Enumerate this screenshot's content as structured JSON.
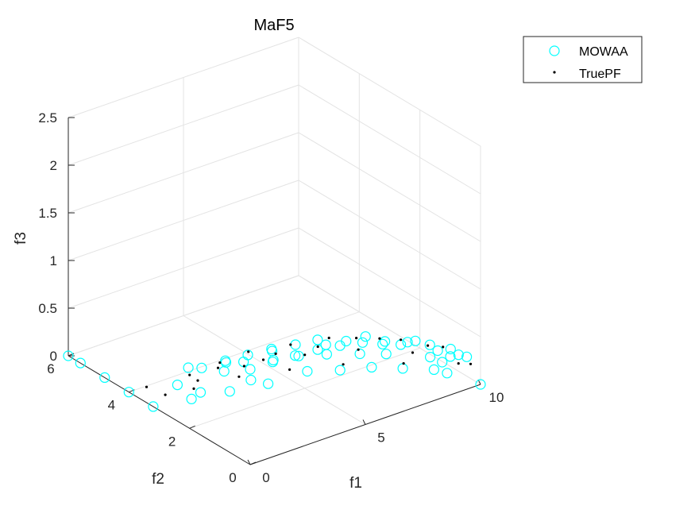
{
  "chart_data": {
    "type": "scatter",
    "title": "MaF5",
    "xlabel": "f1",
    "ylabel": "f2",
    "zlabel": "f3",
    "xlim": [
      0,
      10
    ],
    "ylim": [
      0,
      6
    ],
    "zlim": [
      0,
      2.5
    ],
    "xticks": [
      "0",
      "5",
      "10"
    ],
    "yticks": [
      "0",
      "2",
      "4",
      "6"
    ],
    "zticks": [
      "0",
      "0.5",
      "1",
      "1.5",
      "2",
      "2.5"
    ],
    "grid": true,
    "legend_position": "top-right",
    "series": [
      {
        "name": "MOWAA",
        "marker": "open-circle",
        "color": "#00ffff",
        "points": [
          [
            0,
            0,
            1
          ],
          [
            0,
            0.8,
            0.92
          ],
          [
            0,
            1.6,
            0.71
          ],
          [
            0,
            2.4,
            0.38
          ],
          [
            0,
            3.2,
            0
          ],
          [
            1.95,
            0,
            0.98
          ],
          [
            1.95,
            0.78,
            0.9
          ],
          [
            1.95,
            1.56,
            0.69
          ],
          [
            1.95,
            2.34,
            0.37
          ],
          [
            1.95,
            3.12,
            0
          ],
          [
            3.9,
            0,
            0.92
          ],
          [
            3.9,
            0.74,
            0.84
          ],
          [
            3.9,
            1.47,
            0.65
          ],
          [
            3.9,
            2.2,
            0.35
          ],
          [
            3.9,
            2.94,
            0
          ],
          [
            5.85,
            0,
            0.8
          ],
          [
            5.85,
            0.64,
            0.73
          ],
          [
            5.85,
            1.28,
            0.56
          ],
          [
            5.85,
            1.92,
            0.3
          ],
          [
            5.85,
            2.56,
            0
          ],
          [
            7.8,
            0,
            0.6
          ],
          [
            7.8,
            0.48,
            0.55
          ],
          [
            7.8,
            0.96,
            0.42
          ],
          [
            7.8,
            1.44,
            0.23
          ],
          [
            7.8,
            1.92,
            0
          ],
          [
            9.4,
            0,
            0.34
          ],
          [
            9.4,
            0.27,
            0.31
          ],
          [
            9.4,
            0.54,
            0.24
          ],
          [
            9.4,
            0.81,
            0.13
          ],
          [
            9.4,
            1.08,
            0
          ],
          [
            0.98,
            0,
            0.995
          ],
          [
            2.93,
            0,
            0.96
          ],
          [
            4.88,
            0,
            0.87
          ],
          [
            6.83,
            0,
            0.71
          ],
          [
            8.7,
            0,
            0.48
          ],
          [
            10,
            0,
            0
          ],
          [
            0,
            4,
            0
          ],
          [
            0,
            4.8,
            0
          ],
          [
            0,
            5.6,
            0
          ],
          [
            0,
            6,
            0
          ],
          [
            1.4,
            3.0,
            0
          ],
          [
            2.8,
            2.8,
            0
          ],
          [
            4.2,
            2.6,
            0
          ],
          [
            6.8,
            2.2,
            0
          ],
          [
            8.6,
            1.5,
            0
          ],
          [
            9.6,
            0.8,
            0
          ],
          [
            1,
            2.8,
            0.4
          ],
          [
            3,
            2.5,
            0.35
          ],
          [
            5,
            2.2,
            0.3
          ],
          [
            7,
            1.7,
            0.25
          ],
          [
            9,
            0.9,
            0.2
          ],
          [
            0.5,
            1.2,
            0.82
          ],
          [
            2.4,
            1.1,
            0.78
          ],
          [
            4.6,
            1.0,
            0.68
          ],
          [
            6.8,
            0.8,
            0.54
          ],
          [
            8.8,
            0.5,
            0.36
          ]
        ]
      },
      {
        "name": "TruePF",
        "marker": "dot",
        "color": "#000000",
        "points": [
          [
            0,
            0.2,
            0.995
          ],
          [
            0,
            1.0,
            0.88
          ],
          [
            0,
            2.0,
            0.56
          ],
          [
            0,
            2.8,
            0.2
          ],
          [
            1.5,
            0.3,
            0.98
          ],
          [
            1.5,
            1.2,
            0.83
          ],
          [
            1.5,
            2.2,
            0.47
          ],
          [
            1.5,
            3.0,
            0.1
          ],
          [
            3.2,
            0.2,
            0.93
          ],
          [
            3.2,
            1.1,
            0.78
          ],
          [
            3.2,
            2.0,
            0.45
          ],
          [
            3.2,
            2.8,
            0.12
          ],
          [
            5.0,
            0.3,
            0.85
          ],
          [
            5.0,
            1.2,
            0.68
          ],
          [
            5.0,
            2.0,
            0.35
          ],
          [
            5.0,
            2.5,
            0.1
          ],
          [
            6.8,
            0.2,
            0.7
          ],
          [
            6.8,
            0.9,
            0.58
          ],
          [
            6.8,
            1.6,
            0.33
          ],
          [
            6.8,
            2.1,
            0.08
          ],
          [
            8.5,
            0.1,
            0.5
          ],
          [
            8.5,
            0.6,
            0.42
          ],
          [
            8.5,
            1.1,
            0.25
          ],
          [
            8.5,
            1.4,
            0.08
          ],
          [
            9.7,
            0.1,
            0.22
          ],
          [
            9.7,
            0.5,
            0.15
          ],
          [
            0.5,
            3.8,
            0.05
          ],
          [
            2.2,
            3.4,
            0.05
          ]
        ]
      }
    ]
  }
}
